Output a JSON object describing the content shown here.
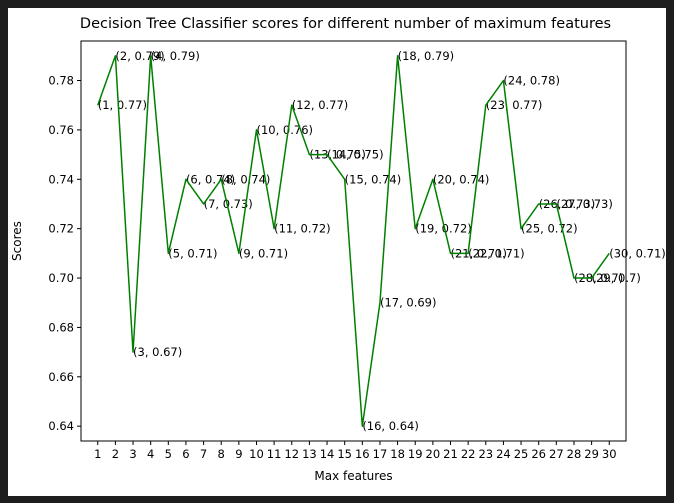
{
  "chart_data": {
    "type": "line",
    "title": "Decision Tree Classifier scores for different number of maximum features",
    "xlabel": "Max features",
    "ylabel": "Scores",
    "x": [
      1,
      2,
      3,
      4,
      5,
      6,
      7,
      8,
      9,
      10,
      11,
      12,
      13,
      14,
      15,
      16,
      17,
      18,
      19,
      20,
      21,
      22,
      23,
      24,
      25,
      26,
      27,
      28,
      29,
      30
    ],
    "series": [
      {
        "color": "#008000",
        "values": [
          0.77,
          0.79,
          0.67,
          0.79,
          0.71,
          0.74,
          0.73,
          0.74,
          0.71,
          0.76,
          0.72,
          0.77,
          0.75,
          0.75,
          0.74,
          0.64,
          0.69,
          0.79,
          0.72,
          0.74,
          0.71,
          0.71,
          0.77,
          0.78,
          0.72,
          0.73,
          0.73,
          0.7,
          0.7,
          0.71
        ]
      }
    ],
    "annotations": [
      "(1, 0.77)",
      "(2, 0.79)",
      "(3, 0.67)",
      "(4, 0.79)",
      "(5, 0.71)",
      "(6, 0.74)",
      "(7, 0.73)",
      "(8, 0.74)",
      "(9, 0.71)",
      "(10, 0.76)",
      "(11, 0.72)",
      "(12, 0.77)",
      "(13, 0.75)",
      "(14, 0.75)",
      "(15, 0.74)",
      "(16, 0.64)",
      "(17, 0.69)",
      "(18, 0.79)",
      "(19, 0.72)",
      "(20, 0.74)",
      "(21, 0.71)",
      "(22, 0.71)",
      "(23, 0.77)",
      "(24, 0.78)",
      "(25, 0.72)",
      "(26, 0.73)",
      "(27, 0.73)",
      "(28, 0.7)",
      "(29, 0.7)",
      "(30, 0.71)"
    ],
    "x_ticks": [
      "1",
      "2",
      "3",
      "4",
      "5",
      "6",
      "7",
      "8",
      "9",
      "10",
      "11",
      "12",
      "13",
      "14",
      "15",
      "16",
      "17",
      "18",
      "19",
      "20",
      "21",
      "22",
      "23",
      "24",
      "25",
      "26",
      "27",
      "28",
      "29",
      "30"
    ],
    "y_ticks": [
      "0.64",
      "0.66",
      "0.68",
      "0.70",
      "0.72",
      "0.74",
      "0.76",
      "0.78"
    ],
    "ylim": [
      0.634,
      0.796
    ],
    "xlim": [
      0.05,
      30.95
    ],
    "grid": false,
    "legend": false
  }
}
